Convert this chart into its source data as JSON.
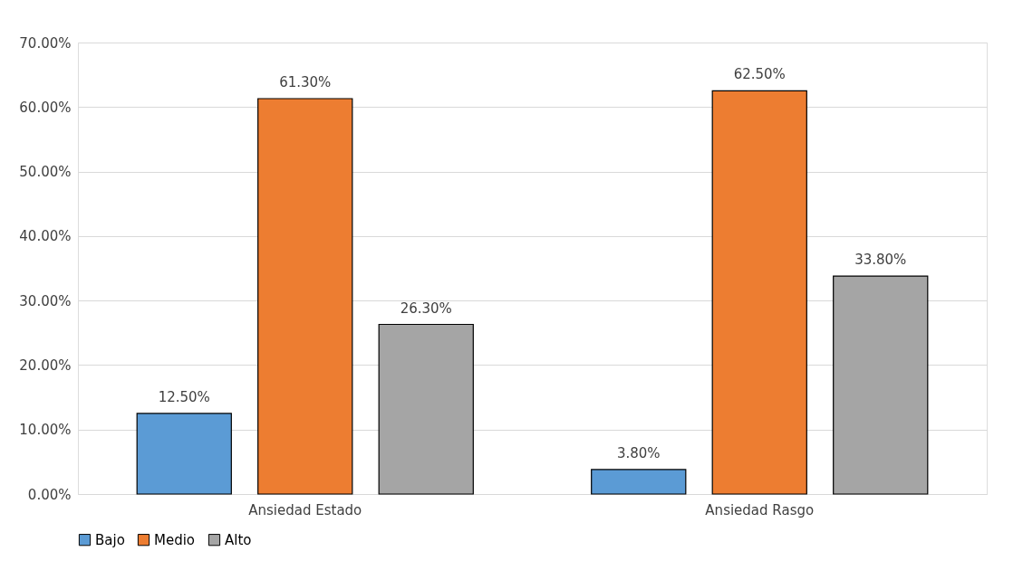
{
  "chart_data": {
    "type": "bar",
    "categories": [
      "Ansiedad Estado",
      "Ansiedad Rasgo"
    ],
    "series": [
      {
        "name": "Bajo",
        "color": "#5b9bd5",
        "values": [
          12.5,
          3.8
        ],
        "value_labels": [
          "12.50%",
          "3.80%"
        ]
      },
      {
        "name": "Medio",
        "color": "#ed7d31",
        "values": [
          61.3,
          62.5
        ],
        "value_labels": [
          "61.30%",
          "62.50%"
        ]
      },
      {
        "name": "Alto",
        "color": "#a5a5a5",
        "values": [
          26.3,
          33.8
        ],
        "value_labels": [
          "26.30%",
          "33.80%"
        ]
      }
    ],
    "ylim": [
      0,
      70
    ],
    "yticks": [
      {
        "value": 0,
        "label": "0.00%"
      },
      {
        "value": 10,
        "label": "10.00%"
      },
      {
        "value": 20,
        "label": "20.00%"
      },
      {
        "value": 30,
        "label": "30.00%"
      },
      {
        "value": 40,
        "label": "40.00%"
      },
      {
        "value": 50,
        "label": "50.00%"
      },
      {
        "value": 60,
        "label": "60.00%"
      },
      {
        "value": 70,
        "label": "70.00%"
      }
    ],
    "grid": "y",
    "legend": "bottom"
  }
}
